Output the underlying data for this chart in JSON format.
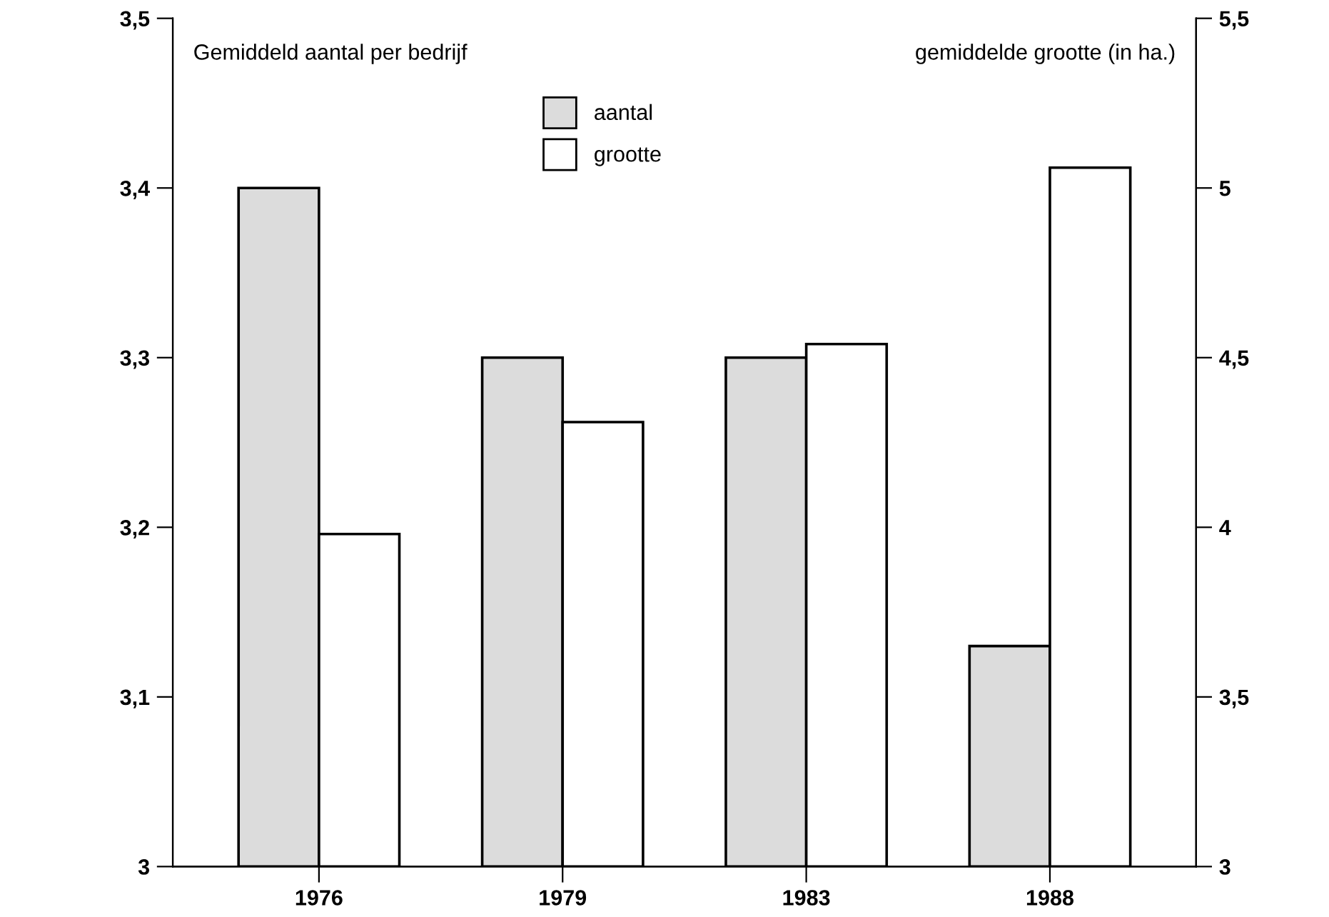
{
  "chart_data": {
    "type": "bar",
    "ylabel": "Gemiddeld aantal per bedrijf",
    "y2label": "gemiddelde grootte (in ha.)",
    "categories": [
      "1976",
      "1979",
      "1983",
      "1988"
    ],
    "series": [
      {
        "name": "aantal",
        "color": "#dcdcdc",
        "values": [
          3.4,
          3.3,
          3.3,
          3.13
        ]
      },
      {
        "name": "grootte",
        "color": "#ffffff",
        "axis": "y2",
        "values": [
          3.98,
          4.31,
          4.54,
          5.06
        ]
      }
    ],
    "ylim": [
      3,
      3.5
    ],
    "yticks": [
      3,
      {
        "value": 3.1,
        "label": "3,1"
      },
      {
        "value": 3.2,
        "label": "3,2"
      },
      {
        "value": 3.3,
        "label": "3,3"
      },
      {
        "value": 3.4,
        "label": "3,4"
      },
      {
        "value": 3.5,
        "label": "3,5"
      }
    ],
    "y2lim": [
      3,
      5.5
    ],
    "y2ticks": [
      3,
      {
        "value": 3.5,
        "label": "3,5"
      },
      4,
      {
        "value": 4.5,
        "label": "4,5"
      },
      5,
      {
        "value": 5.5,
        "label": "5,5"
      }
    ],
    "legend": "top",
    "grid": false
  }
}
